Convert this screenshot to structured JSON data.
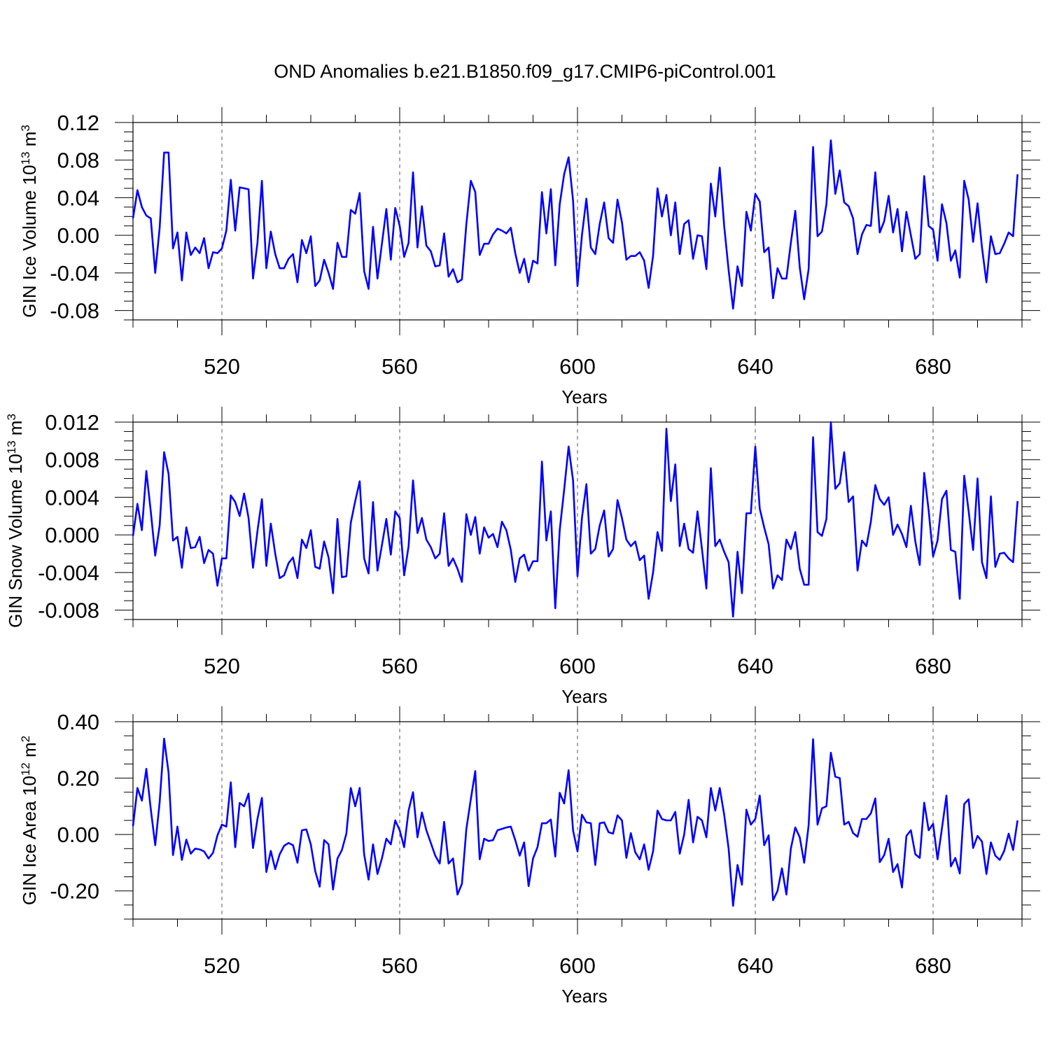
{
  "figure": {
    "title": "OND Anomalies b.e21.B1850.f09_g17.CMIP6-piControl.001"
  },
  "chart_data": [
    {
      "type": "line",
      "title": "OND Anomalies b.e21.B1850.f09_g17.CMIP6-piControl.001",
      "xlabel": "Years",
      "ylabel": {
        "base": "GIN Ice Volume 10",
        "exp": "13",
        "unit": " m",
        "unit_exp": "3"
      },
      "xlim": [
        500,
        700
      ],
      "ylim": [
        -0.09,
        0.12
      ],
      "xticks": [
        520,
        560,
        600,
        640,
        680
      ],
      "yticks": [
        -0.08,
        -0.04,
        0.0,
        0.04,
        0.08,
        0.12
      ],
      "ytick_labels": [
        "-0.08",
        "-0.04",
        "0.00",
        "0.04",
        "0.08",
        "0.12"
      ],
      "grid": "vertical dashed lines at major x ticks",
      "color": "#0000ff",
      "series": [
        {
          "x_start": 500,
          "values": [
            0.018,
            0.048,
            0.03,
            0.021,
            0.018,
            -0.04,
            0.008,
            0.088,
            0.088,
            -0.014,
            0.003,
            -0.048,
            0.003,
            -0.021,
            -0.013,
            -0.019,
            -0.003,
            -0.035,
            -0.018,
            -0.019,
            -0.014,
            0.005,
            0.059,
            0.005,
            0.051,
            0.05,
            0.049,
            -0.046,
            -0.008,
            0.058,
            -0.035,
            0.004,
            -0.02,
            -0.035,
            -0.035,
            -0.025,
            -0.02,
            -0.05,
            -0.005,
            -0.019,
            -0.001,
            -0.054,
            -0.048,
            -0.026,
            -0.04,
            -0.057,
            -0.008,
            -0.023,
            -0.023,
            0.027,
            0.023,
            0.045,
            -0.038,
            -0.057,
            0.009,
            -0.046,
            -0.009,
            0.028,
            -0.026,
            0.029,
            0.01,
            -0.023,
            -0.008,
            0.067,
            -0.013,
            0.031,
            -0.011,
            -0.017,
            -0.033,
            -0.032,
            0.002,
            -0.044,
            -0.036,
            -0.05,
            -0.047,
            0.012,
            0.058,
            0.046,
            -0.021,
            -0.009,
            -0.009,
            0.001,
            0.007,
            0.005,
            0.002,
            0.008,
            -0.019,
            -0.04,
            -0.025,
            -0.05,
            -0.027,
            -0.03,
            0.046,
            0.002,
            0.049,
            -0.032,
            0.033,
            0.065,
            0.083,
            0.037,
            -0.054,
            0.0,
            0.039,
            -0.013,
            -0.02,
            0.012,
            0.035,
            -0.003,
            -0.008,
            0.038,
            0.014,
            -0.026,
            -0.022,
            -0.022,
            -0.018,
            -0.027,
            -0.056,
            -0.022,
            0.05,
            0.02,
            0.043,
            0.0,
            0.035,
            -0.02,
            0.012,
            0.016,
            -0.025,
            0.0,
            -0.001,
            -0.036,
            0.055,
            0.02,
            0.072,
            0.01,
            -0.037,
            -0.078,
            -0.033,
            -0.054,
            0.025,
            0.005,
            0.044,
            0.036,
            -0.018,
            -0.013,
            -0.067,
            -0.035,
            -0.046,
            -0.046,
            -0.008,
            0.026,
            -0.034,
            -0.068,
            -0.036,
            0.094,
            -0.001,
            0.004,
            0.033,
            0.101,
            0.044,
            0.069,
            0.035,
            0.031,
            0.018,
            -0.02,
            0.001,
            0.011,
            0.01,
            0.067,
            0.003,
            0.015,
            0.042,
            0.003,
            0.028,
            -0.017,
            0.025,
            0.0,
            -0.025,
            -0.02,
            0.063,
            0.01,
            0.006,
            -0.027,
            0.033,
            0.013,
            -0.027,
            -0.016,
            -0.045,
            0.058,
            0.038,
            -0.007,
            0.034,
            -0.013,
            -0.05,
            -0.001,
            -0.02,
            -0.019,
            -0.009,
            0.003,
            -0.001,
            0.065
          ]
        }
      ]
    },
    {
      "type": "line",
      "xlabel": "Years",
      "ylabel": {
        "base": "GIN Snow Volume 10",
        "exp": "13",
        "unit": " m",
        "unit_exp": "3"
      },
      "xlim": [
        500,
        700
      ],
      "ylim": [
        -0.009,
        0.012
      ],
      "xticks": [
        520,
        560,
        600,
        640,
        680
      ],
      "yticks": [
        -0.008,
        -0.004,
        0.0,
        0.004,
        0.008,
        0.012
      ],
      "ytick_labels": [
        "-0.008",
        "-0.004",
        "0.000",
        "0.004",
        "0.008",
        "0.012"
      ],
      "grid": "vertical dashed lines at major x ticks",
      "color": "#0000ff",
      "series": [
        {
          "x_start": 500,
          "values": [
            -0.0001,
            0.0033,
            0.0005,
            0.0068,
            0.0025,
            -0.0022,
            0.001,
            0.0088,
            0.0065,
            -0.0006,
            -0.0002,
            -0.0035,
            0.0008,
            -0.0014,
            -0.0013,
            -0.0002,
            -0.003,
            -0.0016,
            -0.002,
            -0.0054,
            -0.0025,
            -0.0025,
            0.0042,
            0.0035,
            0.002,
            0.0044,
            0.0018,
            -0.0035,
            0.0004,
            0.0038,
            -0.0033,
            0.0012,
            -0.002,
            -0.0046,
            -0.0043,
            -0.003,
            -0.0024,
            -0.0046,
            -0.0005,
            -0.0014,
            0.0005,
            -0.0034,
            -0.0036,
            -0.0007,
            -0.0024,
            -0.0062,
            0.0017,
            -0.0045,
            -0.0044,
            0.0013,
            0.0036,
            0.0057,
            -0.0025,
            -0.0041,
            0.0035,
            -0.0038,
            -0.0011,
            0.0017,
            -0.0021,
            0.0025,
            0.0018,
            -0.0043,
            -0.0012,
            0.0058,
            0.0002,
            0.0018,
            -0.0005,
            -0.0013,
            -0.0025,
            -0.002,
            0.0023,
            -0.0033,
            -0.0025,
            -0.0036,
            -0.005,
            0.0022,
            0.0,
            0.0019,
            -0.002,
            0.0008,
            -0.0003,
            0.0001,
            -0.0013,
            0.0014,
            0.0005,
            -0.0016,
            -0.005,
            -0.0025,
            -0.0021,
            -0.0038,
            -0.0028,
            -0.0028,
            0.0078,
            -0.0006,
            0.0025,
            -0.0078,
            0.0005,
            0.0048,
            0.0094,
            0.0058,
            -0.0044,
            0.0018,
            0.0054,
            -0.002,
            -0.0015,
            0.001,
            0.0026,
            -0.0023,
            -0.0015,
            0.0037,
            0.0018,
            -0.0005,
            -0.0012,
            -0.0007,
            -0.0027,
            -0.0022,
            -0.0068,
            -0.004,
            0.0003,
            -0.0017,
            0.0113,
            0.0036,
            0.0075,
            -0.0012,
            0.0012,
            -0.0015,
            -0.0019,
            0.0025,
            -0.0015,
            -0.0057,
            0.0071,
            -0.0012,
            -0.0005,
            -0.0018,
            -0.0029,
            -0.0087,
            -0.0018,
            -0.0062,
            0.0023,
            0.0023,
            0.0094,
            0.0028,
            0.0008,
            -0.001,
            -0.0057,
            -0.0043,
            -0.0048,
            -0.0005,
            -0.0015,
            0.0003,
            -0.0036,
            -0.0053,
            -0.0053,
            0.0104,
            0.0003,
            -0.0001,
            0.0017,
            0.012,
            0.0049,
            0.0055,
            0.0088,
            0.0035,
            0.0041,
            -0.0038,
            -0.0006,
            -0.0012,
            0.0014,
            0.0053,
            0.0038,
            0.0032,
            0.004,
            0.0,
            0.0011,
            0.0001,
            -0.0013,
            0.0031,
            -0.0007,
            -0.0032,
            0.0066,
            0.0026,
            -0.0023,
            -0.0006,
            0.0038,
            0.0047,
            -0.0016,
            -0.0018,
            -0.0068,
            0.0063,
            0.0025,
            -0.0016,
            0.006,
            -0.0029,
            -0.0046,
            0.0041,
            -0.0034,
            -0.002,
            -0.0019,
            -0.0025,
            -0.0029,
            0.0036
          ]
        }
      ]
    },
    {
      "type": "line",
      "xlabel": "Years",
      "ylabel": {
        "base": "GIN Ice Area 10",
        "exp": "12",
        "unit": " m",
        "unit_exp": "2"
      },
      "xlim": [
        500,
        700
      ],
      "ylim": [
        -0.3,
        0.4
      ],
      "xticks": [
        520,
        560,
        600,
        640,
        680
      ],
      "yticks": [
        -0.2,
        0.0,
        0.2,
        0.4
      ],
      "ytick_labels": [
        "-0.20",
        "0.00",
        "0.20",
        "0.40"
      ],
      "grid": "vertical dashed lines at major x ticks",
      "color": "#0000ff",
      "series": [
        {
          "x_start": 500,
          "values": [
            0.03,
            0.165,
            0.12,
            0.233,
            0.09,
            -0.038,
            0.115,
            0.34,
            0.22,
            -0.073,
            0.028,
            -0.09,
            -0.018,
            -0.068,
            -0.05,
            -0.053,
            -0.06,
            -0.085,
            -0.065,
            -0.003,
            0.035,
            0.028,
            0.185,
            -0.045,
            0.112,
            0.1,
            0.145,
            -0.048,
            0.055,
            0.13,
            -0.133,
            -0.058,
            -0.123,
            -0.07,
            -0.04,
            -0.03,
            -0.038,
            -0.1,
            0.015,
            0.018,
            -0.035,
            -0.13,
            -0.185,
            -0.02,
            -0.035,
            -0.195,
            -0.085,
            -0.055,
            0.003,
            0.165,
            0.1,
            0.165,
            -0.07,
            -0.16,
            -0.035,
            -0.14,
            -0.085,
            -0.015,
            -0.035,
            0.05,
            0.015,
            -0.045,
            0.085,
            0.15,
            -0.01,
            0.078,
            0.015,
            -0.03,
            -0.075,
            -0.103,
            0.045,
            -0.103,
            -0.085,
            -0.213,
            -0.175,
            0.02,
            0.125,
            0.225,
            -0.088,
            -0.015,
            -0.023,
            -0.02,
            0.015,
            0.02,
            0.025,
            0.028,
            -0.02,
            -0.075,
            -0.028,
            -0.183,
            -0.085,
            -0.045,
            0.04,
            0.04,
            0.053,
            -0.078,
            0.148,
            0.11,
            0.228,
            0.015,
            -0.06,
            0.07,
            0.043,
            0.04,
            -0.108,
            0.04,
            0.043,
            0.008,
            0.003,
            0.068,
            0.05,
            -0.083,
            0.005,
            -0.063,
            -0.088,
            -0.035,
            -0.125,
            -0.06,
            0.085,
            0.055,
            0.05,
            0.05,
            0.08,
            -0.068,
            0.0,
            0.123,
            -0.028,
            0.063,
            0.05,
            -0.01,
            0.165,
            0.085,
            0.165,
            0.07,
            -0.05,
            -0.253,
            -0.108,
            -0.178,
            0.088,
            0.035,
            0.055,
            0.138,
            -0.038,
            -0.003,
            -0.233,
            -0.2,
            -0.12,
            -0.213,
            -0.05,
            0.025,
            -0.01,
            -0.1,
            0.033,
            0.338,
            0.035,
            0.093,
            0.1,
            0.29,
            0.205,
            0.2,
            0.035,
            0.045,
            0.005,
            -0.008,
            0.055,
            0.055,
            0.075,
            0.128,
            -0.098,
            -0.073,
            -0.015,
            -0.133,
            -0.105,
            -0.188,
            -0.005,
            0.015,
            -0.07,
            -0.083,
            0.113,
            0.015,
            0.038,
            -0.088,
            0.023,
            0.138,
            -0.113,
            -0.083,
            -0.138,
            0.108,
            0.125,
            -0.048,
            -0.005,
            -0.025,
            -0.14,
            -0.028,
            -0.075,
            -0.09,
            -0.058,
            0.003,
            -0.055,
            0.05
          ]
        }
      ]
    }
  ]
}
